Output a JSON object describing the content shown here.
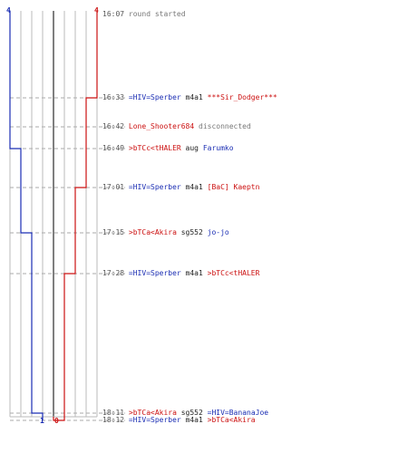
{
  "score": {
    "blue_start": "4",
    "red_start": "4",
    "blue_end": "1",
    "red_end": "0"
  },
  "colors": {
    "blue_team": "#1a2db3",
    "red_team": "#cc1111",
    "grid": "#bbbbbb",
    "dashed_grid": "#aaaaaa",
    "middle_line": "#555555"
  },
  "events": [
    {
      "time": "16:07",
      "parts": [
        {
          "text": "round started",
          "color": "grey"
        }
      ]
    },
    {
      "time": "16:33",
      "parts": [
        {
          "text": "=HIV=Sperber",
          "color": "blue"
        },
        {
          "text": "m4a1",
          "color": "black"
        },
        {
          "text": "***Sir_Dodger***",
          "color": "red"
        }
      ]
    },
    {
      "time": "16:42",
      "parts": [
        {
          "text": "Lone_Shooter684",
          "color": "red"
        },
        {
          "text": "disconnected",
          "color": "grey"
        }
      ]
    },
    {
      "time": "16:49",
      "parts": [
        {
          "text": ">bTCc<tHALER",
          "color": "red"
        },
        {
          "text": "aug",
          "color": "black"
        },
        {
          "text": "Farumko",
          "color": "blue"
        }
      ]
    },
    {
      "time": "17:01",
      "parts": [
        {
          "text": "=HIV=Sperber",
          "color": "blue"
        },
        {
          "text": "m4a1",
          "color": "black"
        },
        {
          "text": "[BaC] Kaeptn",
          "color": "red"
        }
      ]
    },
    {
      "time": "17:15",
      "parts": [
        {
          "text": ">bTCa<Akira",
          "color": "red"
        },
        {
          "text": "sg552",
          "color": "black"
        },
        {
          "text": "jo-jo",
          "color": "blue"
        }
      ]
    },
    {
      "time": "17:28",
      "parts": [
        {
          "text": "=HIV=Sperber",
          "color": "blue"
        },
        {
          "text": "m4a1",
          "color": "black"
        },
        {
          "text": ">bTCc<tHALER",
          "color": "red"
        }
      ]
    },
    {
      "time": "18:11",
      "parts": [
        {
          "text": ">bTCa<Akira",
          "color": "red"
        },
        {
          "text": "sg552",
          "color": "black"
        },
        {
          "text": "=HIV=BananaJoe",
          "color": "blue"
        }
      ]
    },
    {
      "time": "18:12",
      "parts": [
        {
          "text": "=HIV=Sperber",
          "color": "blue"
        },
        {
          "text": "m4a1",
          "color": "black"
        },
        {
          "text": ">bTCa<Akira",
          "color": "red"
        }
      ]
    }
  ],
  "blue_alive": [
    4,
    4,
    4,
    3,
    3,
    2,
    2,
    1,
    1
  ],
  "red_alive": [
    4,
    3,
    3,
    3,
    2,
    2,
    1,
    1,
    0
  ]
}
